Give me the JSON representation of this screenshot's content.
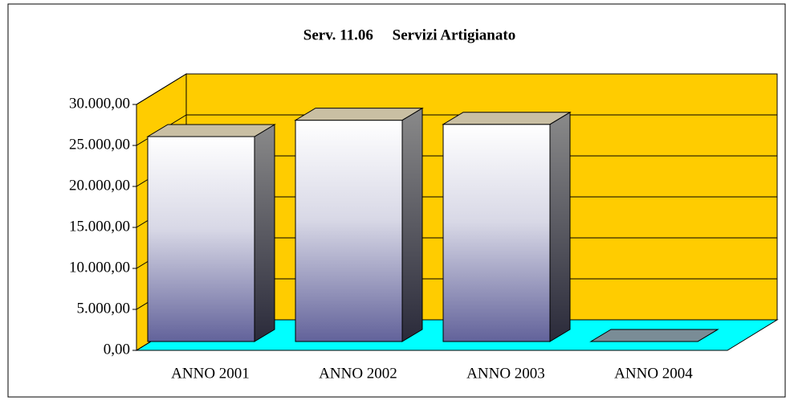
{
  "chart_data": {
    "type": "bar3d",
    "title": "Serv. 11.06     Servizi Artigianato",
    "categories": [
      "ANNO 2001",
      "ANNO 2002",
      "ANNO 2003",
      "ANNO 2004"
    ],
    "values": [
      25000,
      27000,
      26500,
      0
    ],
    "ylim": [
      0,
      30000
    ],
    "yticks": [
      {
        "value": 0,
        "label": "0,00"
      },
      {
        "value": 5000,
        "label": "5.000,00"
      },
      {
        "value": 10000,
        "label": "10.000,00"
      },
      {
        "value": 15000,
        "label": "15.000,00"
      },
      {
        "value": 20000,
        "label": "20.000,00"
      },
      {
        "value": 25000,
        "label": "25.000,00"
      },
      {
        "value": 30000,
        "label": "30.000,00"
      }
    ],
    "grid": true,
    "wall_color": "#ffcc00",
    "floor_color": "#00ffff"
  }
}
